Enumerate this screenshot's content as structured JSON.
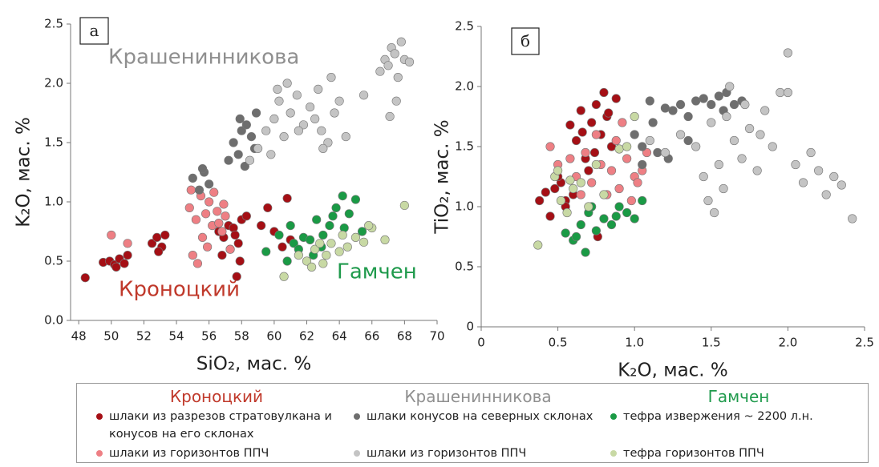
{
  "chart_data": [
    {
      "type": "scatter",
      "panel_label": "а",
      "xlabel": "SiO₂, мас. %",
      "ylabel": "K₂O, мас. %",
      "xlim": [
        47.5,
        70
      ],
      "xticks": [
        48,
        50,
        52,
        54,
        56,
        58,
        60,
        62,
        64,
        66,
        68,
        70
      ],
      "ylim": [
        0,
        2.5
      ],
      "yticks": [
        {
          "value": 0,
          "label": "0.0"
        },
        0.5,
        {
          "value": 1,
          "label": "1.0"
        },
        1.5,
        {
          "value": 2,
          "label": "2.0"
        },
        2.5
      ],
      "annotations": [
        {
          "text": "Крашенинникова",
          "color": "#8f8f8f"
        },
        {
          "text": "Кроноцкий",
          "color": "#c0392b"
        },
        {
          "text": "Гамчен",
          "color": "#1f9a4c"
        }
      ],
      "series": [
        {
          "name": "шлаки из разрезов стратовулкана и конусов на его склонах",
          "color": "#a50f15",
          "x": [
            48.4,
            49.5,
            49.9,
            50.2,
            50.5,
            50.8,
            51.0,
            50.3,
            52.5,
            52.8,
            53.1,
            53.3,
            52.9,
            56.6,
            56.9,
            57.2,
            57.5,
            57.8,
            58.0,
            57.3,
            56.8,
            57.6,
            58.3,
            57.9,
            59.2,
            59.6,
            60.0,
            60.5,
            60.8,
            61.0,
            57.7
          ],
          "values": [
            0.36,
            0.49,
            0.5,
            0.47,
            0.52,
            0.48,
            0.55,
            0.45,
            0.65,
            0.7,
            0.62,
            0.72,
            0.58,
            0.75,
            0.7,
            0.8,
            0.78,
            0.65,
            0.85,
            0.6,
            0.55,
            0.72,
            0.88,
            0.5,
            0.8,
            0.95,
            0.75,
            0.62,
            1.03,
            0.68,
            0.37
          ]
        },
        {
          "name": "шлаки из горизонтов ППЧ",
          "color": "#ee7f84",
          "x": [
            50.0,
            51.0,
            54.8,
            55.2,
            55.5,
            55.8,
            56.0,
            56.2,
            56.5,
            56.8,
            57.0,
            55.0,
            55.6,
            56.3,
            56.9,
            55.3,
            57.3,
            55.9,
            56.6,
            54.9
          ],
          "values": [
            0.72,
            0.65,
            0.95,
            0.85,
            1.05,
            0.9,
            1.0,
            0.8,
            0.92,
            0.75,
            0.88,
            0.55,
            0.7,
            1.08,
            0.98,
            0.48,
            0.6,
            0.62,
            0.82,
            1.1
          ]
        },
        {
          "name": "шлаки конусов на северных склонах",
          "color": "#6e6e6e",
          "x": [
            55.0,
            55.4,
            55.7,
            56.0,
            57.5,
            57.8,
            58.0,
            58.3,
            58.6,
            58.9,
            57.2,
            58.2,
            58.8,
            57.9,
            55.6
          ],
          "values": [
            1.2,
            1.1,
            1.25,
            1.15,
            1.5,
            1.4,
            1.6,
            1.65,
            1.55,
            1.75,
            1.35,
            1.3,
            1.45,
            1.7,
            1.28
          ]
        },
        {
          "name": "шлаки из горизонтов ППЧ",
          "color": "#c4c4c4",
          "x": [
            58.5,
            59.0,
            59.5,
            60.0,
            60.3,
            60.6,
            61.0,
            61.4,
            61.8,
            62.2,
            62.5,
            62.9,
            63.3,
            63.7,
            64.0,
            64.4,
            60.8,
            61.5,
            62.7,
            63.5,
            59.8,
            60.2,
            65.5,
            66.5,
            66.8,
            67.0,
            67.2,
            67.4,
            67.6,
            67.8,
            68.0,
            67.1,
            67.5,
            68.3,
            63.0
          ],
          "values": [
            1.35,
            1.45,
            1.6,
            1.7,
            1.85,
            1.55,
            1.75,
            1.9,
            1.65,
            1.8,
            1.7,
            1.6,
            1.5,
            1.75,
            1.85,
            1.55,
            2.0,
            1.6,
            1.95,
            2.05,
            1.4,
            1.95,
            1.9,
            2.1,
            2.2,
            2.15,
            2.3,
            2.25,
            2.05,
            2.35,
            2.2,
            1.72,
            1.85,
            2.18,
            1.45
          ]
        },
        {
          "name": "тефра извержения ~ 2200 л.н.",
          "color": "#1a9a45",
          "x": [
            59.5,
            60.3,
            60.8,
            61.2,
            61.5,
            61.8,
            62.2,
            62.6,
            63.0,
            63.4,
            63.8,
            64.2,
            64.6,
            65.0,
            62.9,
            63.6,
            64.3,
            61.0,
            62.4,
            65.4
          ],
          "values": [
            0.58,
            0.72,
            0.5,
            0.65,
            0.6,
            0.7,
            0.68,
            0.85,
            0.72,
            0.8,
            0.95,
            1.05,
            0.9,
            1.02,
            0.62,
            0.88,
            0.78,
            0.8,
            0.55,
            0.75
          ]
        },
        {
          "name": "тефра горизонтов ППЧ",
          "color": "#c8d9a4",
          "x": [
            60.6,
            61.5,
            62.0,
            62.5,
            63.0,
            63.5,
            64.0,
            64.5,
            65.0,
            65.5,
            66.0,
            66.8,
            68.0,
            62.3,
            63.2,
            64.2,
            62.8,
            65.8
          ],
          "values": [
            0.37,
            0.55,
            0.5,
            0.6,
            0.48,
            0.65,
            0.58,
            0.62,
            0.7,
            0.66,
            0.78,
            0.68,
            0.97,
            0.45,
            0.55,
            0.72,
            0.65,
            0.8
          ]
        }
      ]
    },
    {
      "type": "scatter",
      "panel_label": "б",
      "xlabel": "K₂O, мас. %",
      "ylabel": "TiO₂, мас. %",
      "xlim": [
        0,
        2.5
      ],
      "xticks": [
        0,
        0.5,
        {
          "value": 1,
          "label": "1.0"
        },
        1.5,
        {
          "value": 2,
          "label": "2.0"
        },
        2.5
      ],
      "ylim": [
        0,
        2.5
      ],
      "yticks": [
        0,
        0.5,
        {
          "value": 1,
          "label": "1.0"
        },
        1.5,
        {
          "value": 2,
          "label": "2.0"
        },
        2.5
      ],
      "series": [
        {
          "color": "#a50f15",
          "x": [
            0.38,
            0.45,
            0.48,
            0.52,
            0.55,
            0.58,
            0.62,
            0.65,
            0.68,
            0.72,
            0.75,
            0.78,
            0.8,
            0.82,
            0.85,
            0.88,
            0.55,
            0.6,
            0.7,
            0.76,
            0.5,
            0.66,
            0.74,
            0.83,
            0.42
          ],
          "values": [
            1.05,
            0.92,
            1.15,
            1.2,
            1.05,
            1.68,
            1.55,
            1.8,
            1.4,
            1.7,
            1.85,
            1.6,
            1.95,
            1.75,
            1.5,
            1.9,
            1.0,
            1.1,
            1.3,
            0.75,
            1.25,
            1.62,
            1.45,
            1.78,
            1.12
          ]
        },
        {
          "color": "#ee7f84",
          "x": [
            0.45,
            0.5,
            0.62,
            0.68,
            0.72,
            0.78,
            0.85,
            0.9,
            0.95,
            1.0,
            1.05,
            1.08,
            0.82,
            0.88,
            0.92,
            0.98,
            0.75,
            0.65,
            0.58,
            1.02
          ],
          "values": [
            1.5,
            1.35,
            1.25,
            1.45,
            1.2,
            1.35,
            1.3,
            1.15,
            1.4,
            1.25,
            1.3,
            1.45,
            1.1,
            1.55,
            1.7,
            1.05,
            1.6,
            1.1,
            1.4,
            1.2
          ]
        },
        {
          "color": "#6e6e6e",
          "x": [
            1.0,
            1.05,
            1.1,
            1.15,
            1.2,
            1.25,
            1.3,
            1.35,
            1.4,
            1.45,
            1.5,
            1.55,
            1.6,
            1.65,
            1.7,
            1.12,
            1.22,
            1.35,
            1.05,
            1.58
          ],
          "values": [
            1.6,
            1.5,
            1.88,
            1.45,
            1.82,
            1.8,
            1.85,
            1.75,
            1.88,
            1.9,
            1.85,
            1.92,
            1.95,
            1.85,
            1.88,
            1.7,
            1.4,
            1.55,
            1.35,
            1.8
          ]
        },
        {
          "color": "#c4c4c4",
          "x": [
            1.1,
            1.2,
            1.3,
            1.4,
            1.45,
            1.5,
            1.55,
            1.6,
            1.65,
            1.7,
            1.75,
            1.8,
            1.85,
            1.9,
            1.95,
            2.0,
            2.05,
            2.1,
            2.15,
            2.2,
            2.25,
            2.3,
            2.35,
            2.42,
            1.48,
            1.62,
            1.72,
            1.52,
            1.82,
            2.0,
            1.58
          ],
          "values": [
            1.55,
            1.45,
            1.6,
            1.5,
            1.25,
            1.7,
            1.35,
            1.75,
            1.55,
            1.4,
            1.65,
            1.3,
            1.8,
            1.5,
            1.95,
            2.28,
            1.35,
            1.2,
            1.45,
            1.3,
            1.1,
            1.25,
            1.18,
            0.9,
            1.05,
            2.0,
            1.85,
            0.95,
            1.6,
            1.95,
            1.15
          ]
        },
        {
          "color": "#1a9a45",
          "x": [
            0.55,
            0.6,
            0.65,
            0.68,
            0.7,
            0.75,
            0.8,
            0.85,
            0.9,
            0.95,
            1.0,
            1.05,
            0.62,
            0.72,
            0.88
          ],
          "values": [
            0.78,
            0.72,
            0.85,
            0.62,
            0.95,
            0.8,
            0.9,
            0.85,
            1.0,
            0.95,
            0.9,
            1.05,
            0.75,
            1.0,
            0.92
          ]
        },
        {
          "color": "#c8d9a4",
          "x": [
            0.37,
            0.48,
            0.52,
            0.56,
            0.6,
            0.65,
            0.7,
            0.75,
            0.8,
            0.9,
            1.0,
            0.5,
            0.58,
            0.95
          ],
          "values": [
            0.68,
            1.25,
            1.05,
            0.95,
            1.15,
            1.2,
            1.0,
            1.35,
            1.1,
            1.48,
            1.75,
            1.3,
            1.22,
            1.5
          ]
        }
      ]
    }
  ],
  "legend": {
    "groups": [
      {
        "title": "Кроноцкий",
        "color": "#c0392b"
      },
      {
        "title": "Крашенинникова",
        "color": "#8f8f8f"
      },
      {
        "title": "Гамчен",
        "color": "#1f9a4c"
      }
    ]
  }
}
